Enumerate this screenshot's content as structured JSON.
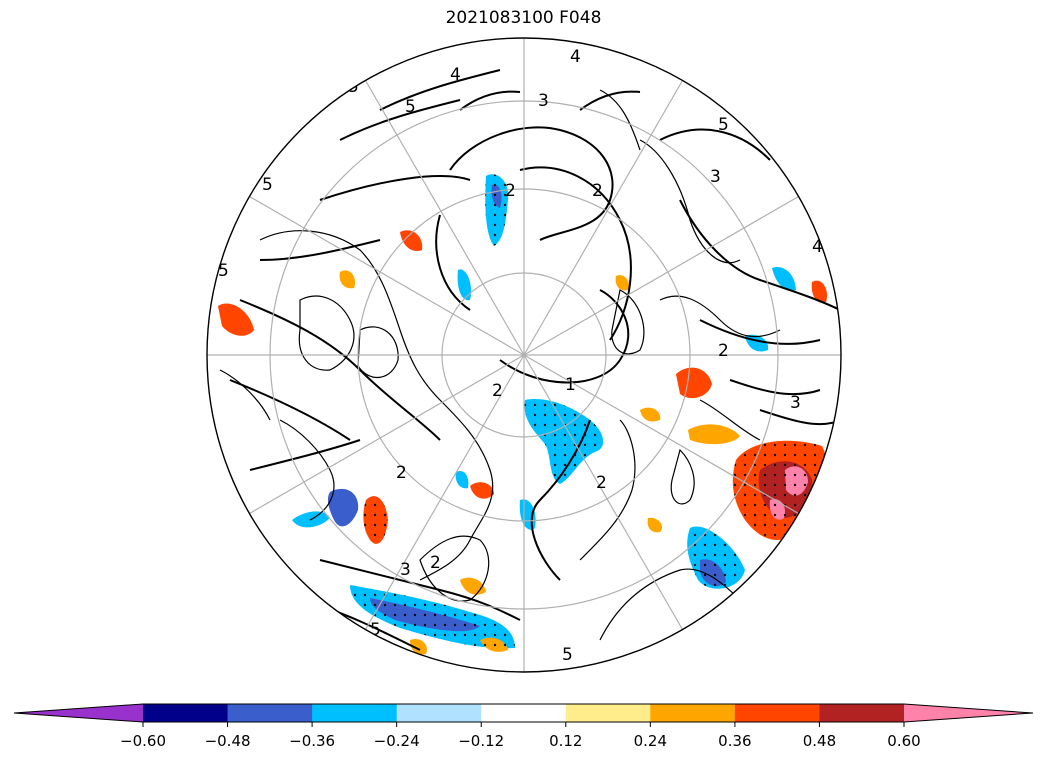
{
  "title": "2021083100 F048",
  "map": {
    "projection": "north-polar-stereographic",
    "contour_labels": [
      "5",
      "5",
      "4",
      "3",
      "4",
      "3",
      "2",
      "5",
      "5",
      "2",
      "5",
      "4",
      "2",
      "2",
      "1",
      "2",
      "2",
      "2",
      "3",
      "3",
      "5",
      "5"
    ]
  },
  "colorbar": {
    "extend": "both",
    "tick_labels": [
      "−0.60",
      "−0.48",
      "−0.36",
      "−0.24",
      "−0.12",
      "0.12",
      "0.24",
      "0.36",
      "0.48",
      "0.60"
    ],
    "colors": [
      "#9932cc",
      "#00008b",
      "#3a5fcd",
      "#00bfff",
      "#b0e2ff",
      "#ffffff",
      "#ffec8b",
      "#ffa500",
      "#ff4500",
      "#b22222",
      "#ff82ab"
    ]
  }
}
